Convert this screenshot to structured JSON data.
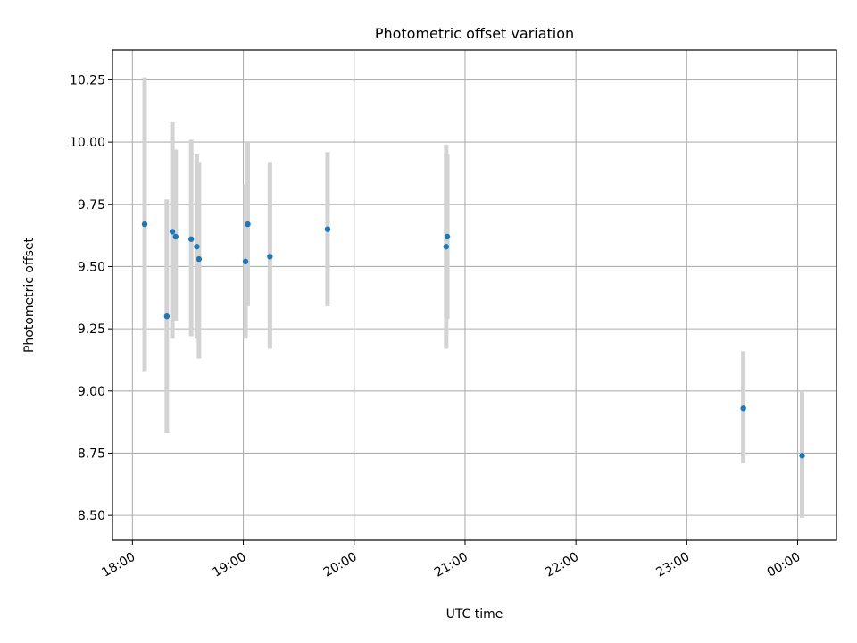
{
  "chart_data": {
    "type": "scatter",
    "title": "Photometric offset variation",
    "xlabel": "UTC time",
    "ylabel": "Photometric offset",
    "xlim_hours": [
      17.82,
      24.35
    ],
    "ylim": [
      8.4,
      10.37
    ],
    "grid": true,
    "colors": {
      "point": "#1f77b4",
      "errorbar": "#d3d3d3",
      "grid": "#b0b0b0"
    },
    "x_ticks": [
      {
        "value": 18,
        "label": "18:00"
      },
      {
        "value": 19,
        "label": "19:00"
      },
      {
        "value": 20,
        "label": "20:00"
      },
      {
        "value": 21,
        "label": "21:00"
      },
      {
        "value": 22,
        "label": "22:00"
      },
      {
        "value": 23,
        "label": "23:00"
      },
      {
        "value": 24,
        "label": "00:00"
      }
    ],
    "y_ticks": [
      {
        "value": 8.5,
        "label": "8.50"
      },
      {
        "value": 8.75,
        "label": "8.75"
      },
      {
        "value": 9.0,
        "label": "9.00"
      },
      {
        "value": 9.25,
        "label": "9.25"
      },
      {
        "value": 9.5,
        "label": "9.50"
      },
      {
        "value": 9.75,
        "label": "9.75"
      },
      {
        "value": 10.0,
        "label": "10.00"
      },
      {
        "value": 10.25,
        "label": "10.25"
      }
    ],
    "points": [
      {
        "x": 18.11,
        "y": 9.67,
        "ylow": 9.08,
        "yhigh": 10.26
      },
      {
        "x": 18.31,
        "y": 9.3,
        "ylow": 8.83,
        "yhigh": 9.77
      },
      {
        "x": 18.36,
        "y": 9.64,
        "ylow": 9.21,
        "yhigh": 10.08
      },
      {
        "x": 18.39,
        "y": 9.62,
        "ylow": 9.28,
        "yhigh": 9.97
      },
      {
        "x": 18.53,
        "y": 9.61,
        "ylow": 9.22,
        "yhigh": 10.01
      },
      {
        "x": 18.58,
        "y": 9.58,
        "ylow": 9.21,
        "yhigh": 9.95
      },
      {
        "x": 18.6,
        "y": 9.53,
        "ylow": 9.13,
        "yhigh": 9.92
      },
      {
        "x": 19.02,
        "y": 9.52,
        "ylow": 9.21,
        "yhigh": 9.83
      },
      {
        "x": 19.04,
        "y": 9.67,
        "ylow": 9.34,
        "yhigh": 10.0
      },
      {
        "x": 19.24,
        "y": 9.54,
        "ylow": 9.17,
        "yhigh": 9.92
      },
      {
        "x": 19.76,
        "y": 9.65,
        "ylow": 9.34,
        "yhigh": 9.96
      },
      {
        "x": 20.83,
        "y": 9.58,
        "ylow": 9.17,
        "yhigh": 9.99
      },
      {
        "x": 20.84,
        "y": 9.62,
        "ylow": 9.29,
        "yhigh": 9.95
      },
      {
        "x": 23.51,
        "y": 8.93,
        "ylow": 8.71,
        "yhigh": 9.16
      },
      {
        "x": 24.04,
        "y": 8.74,
        "ylow": 8.49,
        "yhigh": 9.0
      }
    ]
  }
}
